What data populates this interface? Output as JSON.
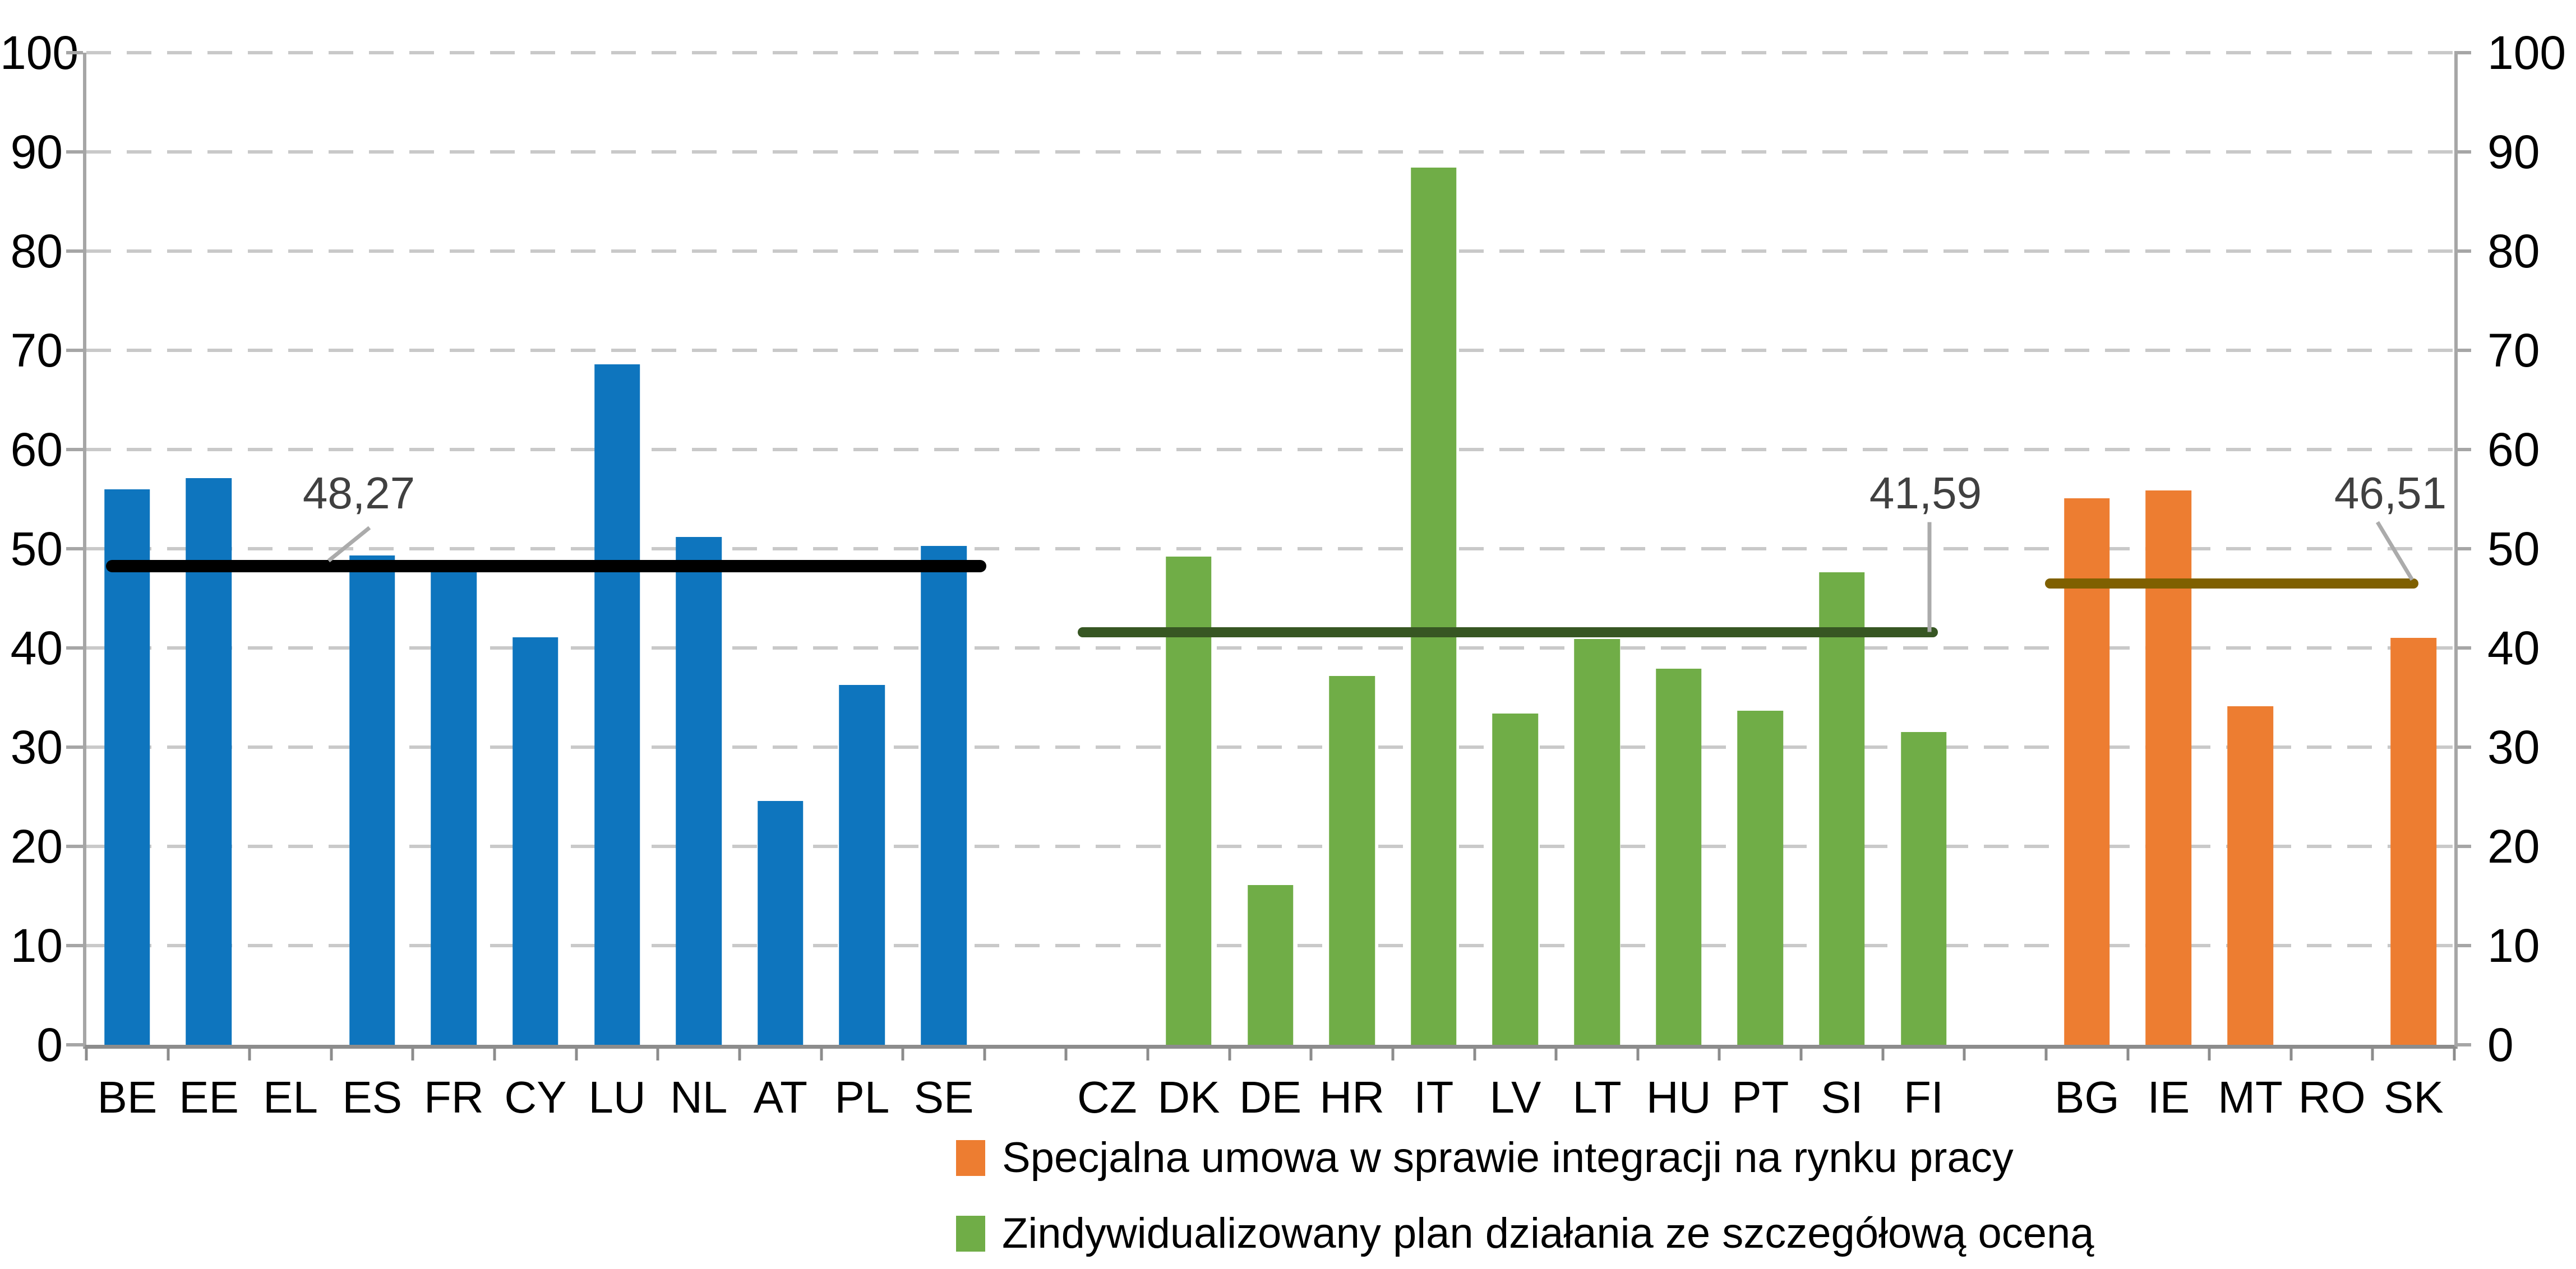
{
  "y_axis": {
    "tick_labels": [
      "0",
      "10",
      "20",
      "30",
      "40",
      "50",
      "60",
      "70",
      "80",
      "90",
      "100"
    ]
  },
  "chart_data": {
    "type": "bar",
    "title": "",
    "xlabel": "",
    "ylabel": "",
    "ylim": [
      0,
      100
    ],
    "grid": "horizontal dashed every 10, dual y-axes",
    "legend_position": "bottom",
    "groups": [
      {
        "name": "blue-group",
        "color": "#0E75BE",
        "average": 48.27,
        "average_label": "48,27",
        "average_line_color": "#000000",
        "categories": [
          "BE",
          "EE",
          "EL",
          "ES",
          "FR",
          "CY",
          "LU",
          "NL",
          "AT",
          "PL",
          "SE"
        ],
        "values": [
          56.0,
          57.1,
          0,
          49.3,
          48.6,
          41.1,
          68.6,
          51.2,
          24.6,
          36.3,
          50.3
        ]
      },
      {
        "name": "green-group",
        "color": "#70AD47",
        "average": 41.59,
        "average_label": "41,59",
        "average_line_color": "#375623",
        "categories": [
          "CZ",
          "DK",
          "DE",
          "HR",
          "IT",
          "LV",
          "LT",
          "HU",
          "PT",
          "SI",
          "FI"
        ],
        "values": [
          0,
          49.2,
          16.1,
          37.2,
          88.4,
          33.4,
          40.9,
          37.9,
          33.7,
          47.6,
          31.5
        ]
      },
      {
        "name": "orange-group",
        "color": "#ED7D31",
        "average": 46.51,
        "average_label": "46,51",
        "average_line_color": "#7F6000",
        "categories": [
          "BG",
          "IE",
          "MT",
          "RO",
          "SK"
        ],
        "values": [
          55.1,
          55.9,
          34.1,
          0,
          41.0
        ]
      }
    ],
    "legend": [
      {
        "label": "Specjalna umowa w sprawie integracji na rynku pracy",
        "color": "#ED7D31"
      },
      {
        "label": "Zindywidualizowany plan działania ze szczegółową oceną",
        "color": "#70AD47"
      }
    ]
  }
}
